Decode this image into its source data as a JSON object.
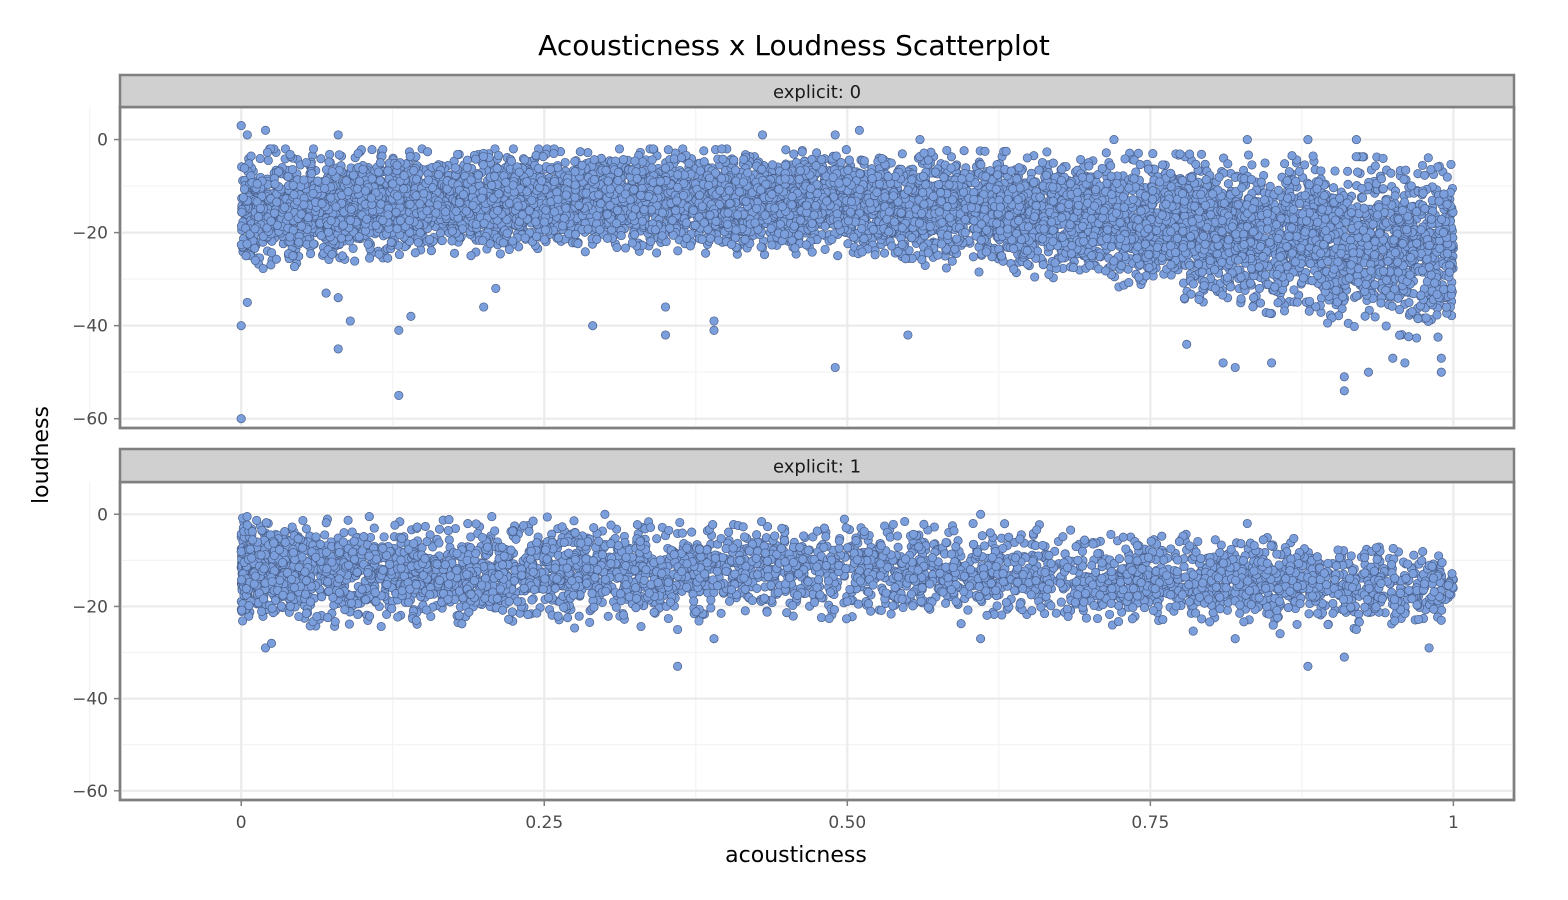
{
  "chart_data": {
    "type": "scatter",
    "title": "Acousticness x Loudness Scatterplot",
    "xlabel": "acousticness",
    "ylabel": "loudness",
    "xlim": [
      -0.1,
      1.05
    ],
    "ylim": [
      -62,
      7
    ],
    "x_ticks": [
      0,
      0.25,
      0.5,
      0.75,
      1
    ],
    "x_tick_labels": [
      "0",
      "0.25",
      "0.50",
      "0.75",
      "1"
    ],
    "y_ticks": [
      0,
      -20,
      -40,
      -60
    ],
    "y_tick_labels": [
      "0",
      "−20",
      "−40",
      "−60"
    ],
    "grid": true,
    "point_color": "#7b9fdc",
    "point_edge_color": "#4a5f8a",
    "facet_variable": "explicit",
    "panels": [
      {
        "label": "explicit: 0",
        "band": [
          [
            0,
            -2,
            -28
          ],
          [
            0.25,
            -2,
            -24
          ],
          [
            0.5,
            -2,
            -25
          ],
          [
            0.75,
            -3,
            -33
          ],
          [
            1,
            -4,
            -44
          ]
        ],
        "density": 1.0,
        "outliers": [
          [
            0,
            3
          ],
          [
            0.005,
            1
          ],
          [
            0.02,
            2
          ],
          [
            0.08,
            1
          ],
          [
            0.43,
            1
          ],
          [
            0.49,
            1
          ],
          [
            0.51,
            2
          ],
          [
            0.56,
            0
          ],
          [
            0.72,
            0
          ],
          [
            0.83,
            0
          ],
          [
            0.88,
            0
          ],
          [
            0.92,
            0
          ],
          [
            0,
            -60
          ],
          [
            0.13,
            -55
          ],
          [
            0.08,
            -45
          ],
          [
            0.09,
            -39
          ],
          [
            0.13,
            -41
          ],
          [
            0.14,
            -38
          ],
          [
            0.2,
            -36
          ],
          [
            0.29,
            -40
          ],
          [
            0.35,
            -42
          ],
          [
            0.35,
            -36
          ],
          [
            0.39,
            -39
          ],
          [
            0.39,
            -41
          ],
          [
            0.55,
            -42
          ],
          [
            0.49,
            -49
          ],
          [
            0.78,
            -44
          ],
          [
            0.81,
            -48
          ],
          [
            0.82,
            -49
          ],
          [
            0.85,
            -48
          ],
          [
            0.91,
            -51
          ],
          [
            0.91,
            -54
          ],
          [
            0.93,
            -50
          ],
          [
            0.95,
            -47
          ],
          [
            0.96,
            -48
          ],
          [
            0.99,
            -50
          ],
          [
            0.99,
            -47
          ],
          [
            0,
            -40
          ],
          [
            0.005,
            -35
          ],
          [
            0.07,
            -33
          ],
          [
            0.08,
            -34
          ],
          [
            0.21,
            -32
          ]
        ]
      },
      {
        "label": "explicit: 1",
        "band": [
          [
            0,
            -0.5,
            -24
          ],
          [
            0.25,
            -0.5,
            -25
          ],
          [
            0.5,
            -1,
            -23
          ],
          [
            0.75,
            -3,
            -25
          ],
          [
            0.85,
            -5,
            -26
          ],
          [
            1,
            -7,
            -24
          ]
        ],
        "density": 0.45,
        "outliers": [
          [
            0.02,
            -29
          ],
          [
            0.025,
            -28
          ],
          [
            0.36,
            -33
          ],
          [
            0.36,
            -25
          ],
          [
            0.39,
            -27
          ],
          [
            0.61,
            -27
          ],
          [
            0.82,
            -27
          ],
          [
            0.83,
            -2
          ],
          [
            0.88,
            -33
          ],
          [
            0.91,
            -31
          ],
          [
            0.92,
            -25
          ],
          [
            0.98,
            -29
          ],
          [
            0.99,
            -23
          ],
          [
            0.3,
            0
          ],
          [
            0.61,
            0
          ]
        ]
      }
    ]
  }
}
